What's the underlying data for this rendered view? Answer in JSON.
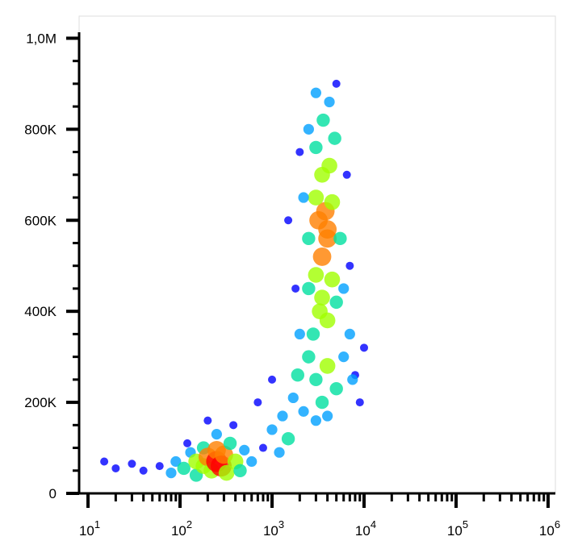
{
  "chart_data": {
    "type": "scatter",
    "x": [
      15,
      20,
      30,
      40,
      60,
      80,
      90,
      110,
      130,
      150,
      150,
      180,
      180,
      200,
      220,
      250,
      250,
      280,
      300,
      320,
      350,
      400,
      450,
      500,
      600,
      250,
      200,
      380,
      120,
      800,
      1000,
      1200,
      1300,
      1500,
      1700,
      1900,
      2200,
      1000,
      700,
      2500,
      3000,
      3500,
      4000,
      5000,
      6000,
      7000,
      8000,
      10000,
      2800,
      3300,
      4000,
      5000,
      2500,
      3000,
      3500,
      4000,
      3200,
      3800,
      3000,
      4500,
      2500,
      5500,
      2200,
      3500,
      4200,
      3000,
      4800,
      3600,
      4200,
      3000,
      5000,
      2000,
      6500,
      7000,
      1800,
      1500,
      4500,
      3500,
      6000,
      7500,
      9000,
      2000,
      3000,
      4000,
      2500,
      4000
    ],
    "y": [
      70000,
      55000,
      65000,
      50000,
      60000,
      45000,
      70000,
      55000,
      90000,
      40000,
      70000,
      60000,
      100000,
      80000,
      50000,
      70000,
      95000,
      60000,
      85000,
      45000,
      110000,
      70000,
      50000,
      95000,
      70000,
      130000,
      160000,
      150000,
      110000,
      100000,
      140000,
      90000,
      170000,
      120000,
      210000,
      260000,
      180000,
      250000,
      200000,
      300000,
      250000,
      200000,
      280000,
      230000,
      300000,
      350000,
      260000,
      320000,
      350000,
      400000,
      380000,
      420000,
      450000,
      480000,
      520000,
      560000,
      600000,
      620000,
      650000,
      640000,
      560000,
      560000,
      650000,
      700000,
      720000,
      760000,
      780000,
      820000,
      860000,
      880000,
      900000,
      750000,
      700000,
      500000,
      450000,
      600000,
      470000,
      430000,
      450000,
      250000,
      200000,
      350000,
      160000,
      170000,
      800000,
      580000
    ],
    "density": [
      0,
      0,
      0,
      0,
      0,
      1,
      1,
      2,
      1,
      2,
      3,
      3,
      2,
      4,
      3,
      5,
      4,
      5,
      4,
      3,
      2,
      3,
      2,
      1,
      1,
      1,
      0,
      0,
      0,
      0,
      1,
      1,
      1,
      2,
      1,
      2,
      1,
      0,
      0,
      2,
      2,
      2,
      3,
      2,
      1,
      1,
      0,
      0,
      2,
      3,
      3,
      2,
      2,
      3,
      4,
      4,
      4,
      4,
      3,
      3,
      2,
      2,
      1,
      3,
      3,
      2,
      2,
      2,
      1,
      1,
      0,
      0,
      0,
      0,
      0,
      0,
      3,
      3,
      1,
      1,
      0,
      1,
      1,
      1,
      1,
      4
    ],
    "colormap": [
      "#0000ff",
      "#00a0ff",
      "#00e0a0",
      "#a0ff00",
      "#ff8000",
      "#ff0000"
    ],
    "xscale": "log",
    "xlim": [
      8,
      1200000
    ],
    "xticks": [
      {
        "value": 10,
        "label": "10",
        "exponent": "1"
      },
      {
        "value": 100,
        "label": "10",
        "exponent": "2"
      },
      {
        "value": 1000,
        "label": "10",
        "exponent": "3"
      },
      {
        "value": 10000,
        "label": "10",
        "exponent": "4"
      },
      {
        "value": 100000,
        "label": "10",
        "exponent": "5"
      },
      {
        "value": 1000000,
        "label": "10",
        "exponent": "6"
      }
    ],
    "xminorticks": [
      20,
      30,
      40,
      50,
      60,
      70,
      80,
      90,
      200,
      300,
      400,
      500,
      600,
      700,
      800,
      900,
      2000,
      3000,
      4000,
      5000,
      6000,
      7000,
      8000,
      9000,
      20000,
      30000,
      40000,
      50000,
      60000,
      70000,
      80000,
      90000,
      200000,
      300000,
      400000,
      500000,
      600000,
      700000,
      800000,
      900000
    ],
    "ylim": [
      0,
      1048576
    ],
    "yticks": [
      0,
      {
        "value": 200000,
        "label": "200K"
      },
      {
        "value": 400000,
        "label": "400K"
      },
      {
        "value": 600000,
        "label": "600K"
      },
      {
        "value": 800000,
        "label": "800K"
      },
      {
        "value": 1000000,
        "label": "1,0M"
      }
    ],
    "yminorticks": [
      50000,
      100000,
      150000,
      250000,
      300000,
      350000,
      450000,
      500000,
      550000,
      650000,
      700000,
      750000,
      850000,
      900000,
      950000
    ]
  }
}
